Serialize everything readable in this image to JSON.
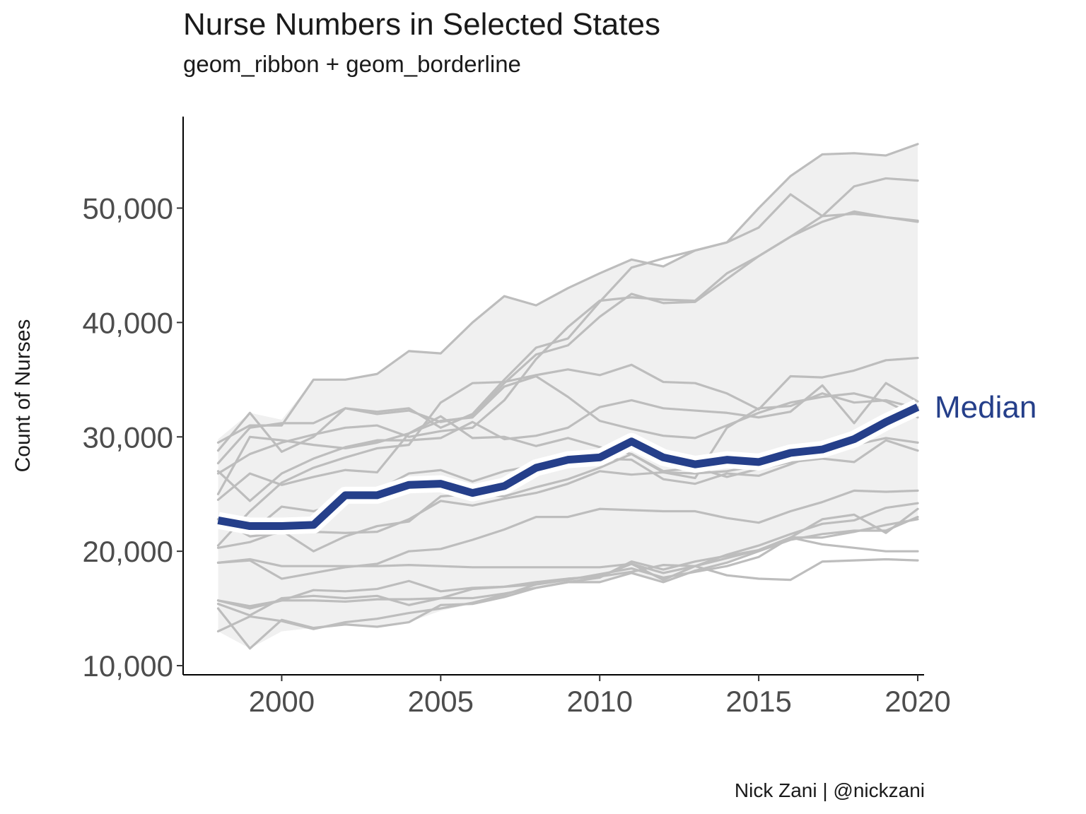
{
  "header": {
    "title": "Nurse Numbers in Selected States",
    "subtitle": "geom_ribbon + geom_borderline"
  },
  "caption": "Nick Zani | @nickzani",
  "colors": {
    "background_lines": "#bdbdbd",
    "ribbon": "#f0f0f0",
    "median": "#253f8a",
    "median_border": "#ffffff"
  },
  "chart_data": {
    "type": "line",
    "title": "Nurse Numbers in Selected States",
    "subtitle": "geom_ribbon + geom_borderline",
    "xlabel": "",
    "ylabel": "Count of Nurses",
    "xlim": [
      1996.9,
      2020.2
    ],
    "ylim": [
      9200,
      58000
    ],
    "x_ticks": [
      2000,
      2005,
      2010,
      2015,
      2020
    ],
    "y_ticks": [
      10000,
      20000,
      30000,
      40000,
      50000
    ],
    "y_tick_labels": [
      "10,000",
      "20,000",
      "30,000",
      "40,000",
      "50,000"
    ],
    "grid": false,
    "x": [
      1998,
      1999,
      2000,
      2001,
      2002,
      2003,
      2004,
      2005,
      2006,
      2007,
      2008,
      2009,
      2010,
      2011,
      2012,
      2013,
      2014,
      2015,
      2016,
      2017,
      2018,
      2019,
      2020
    ],
    "ribbon": {
      "lower": [
        13000,
        11500,
        13000,
        13300,
        13600,
        13400,
        13800,
        14800,
        15400,
        16000,
        16800,
        17300,
        17300,
        18100,
        17300,
        18300,
        19000,
        20000,
        21000,
        21500,
        21800,
        21800,
        23000
      ],
      "upper": [
        29800,
        32100,
        31500,
        35000,
        35000,
        35500,
        37500,
        37300,
        40000,
        42300,
        41500,
        43000,
        44300,
        45500,
        44900,
        46300,
        47000,
        50000,
        52800,
        54700,
        54800,
        54600,
        55600
      ]
    },
    "series": [
      {
        "values": [
          29500,
          31000,
          31000,
          35000,
          35000,
          35500,
          37500,
          37300,
          40000,
          42300,
          41500,
          43000,
          44300,
          45500,
          44900,
          46300,
          47000,
          50000,
          52800,
          54700,
          54800,
          54600,
          55600
        ]
      },
      {
        "values": [
          28800,
          32100,
          28700,
          30000,
          32500,
          32200,
          32500,
          30800,
          32000,
          35000,
          37800,
          38600,
          41800,
          44800,
          45600,
          46300,
          47000,
          48300,
          51200,
          49300,
          51900,
          52600,
          52400
        ]
      },
      {
        "values": [
          27700,
          30800,
          31200,
          31200,
          32500,
          32000,
          32300,
          31300,
          31800,
          34700,
          37200,
          38000,
          40500,
          42500,
          41700,
          41800,
          43800,
          45800,
          47500,
          49300,
          49500,
          49200,
          48900
        ]
      },
      {
        "values": [
          26800,
          28500,
          29500,
          30200,
          30800,
          31000,
          30000,
          30500,
          30800,
          33200,
          36800,
          39600,
          41900,
          42200,
          42000,
          41900,
          44300,
          45800,
          47500,
          48800,
          49700,
          49200,
          48800
        ]
      },
      {
        "values": [
          20500,
          23500,
          26000,
          27300,
          28200,
          29000,
          29300,
          33000,
          34700,
          34800,
          35400,
          35900,
          35400,
          36300,
          34800,
          34700,
          33800,
          32400,
          35300,
          35200,
          35800,
          36700,
          36900
        ]
      },
      {
        "values": [
          27000,
          24400,
          26800,
          28100,
          29100,
          29700,
          29700,
          29900,
          31300,
          29800,
          30100,
          30800,
          32600,
          33200,
          32500,
          32300,
          32100,
          31700,
          32200,
          34500,
          31200,
          34700,
          33100
        ]
      },
      {
        "values": [
          25000,
          30000,
          29700,
          29300,
          29000,
          29500,
          30300,
          31400,
          31700,
          34400,
          35300,
          33500,
          31400,
          30700,
          30100,
          29900,
          31000,
          32100,
          33000,
          33500,
          33800,
          33100,
          31700
        ]
      },
      {
        "values": [
          24500,
          26800,
          25800,
          26500,
          27100,
          26900,
          30300,
          31800,
          29900,
          30000,
          29200,
          29900,
          29100,
          28500,
          26900,
          26400,
          30800,
          32500,
          32700,
          33800,
          33000,
          33200,
          32500
        ]
      },
      {
        "values": [
          22800,
          21600,
          23900,
          23500,
          24300,
          25300,
          26800,
          27100,
          26100,
          27000,
          27500,
          27400,
          28100,
          28000,
          26300,
          25900,
          26800,
          26600,
          27600,
          28700,
          29300,
          29900,
          29500
        ]
      },
      {
        "values": [
          20300,
          20800,
          21800,
          20000,
          21300,
          22200,
          22600,
          24800,
          25000,
          24800,
          25600,
          26300,
          27300,
          28500,
          27000,
          27300,
          26500,
          27200,
          27800,
          28100,
          27800,
          29700,
          28800
        ]
      },
      {
        "values": [
          22800,
          22200,
          22200,
          22300,
          24900,
          24900,
          25800,
          25900,
          25100,
          25600,
          27300,
          28000,
          28100,
          29600,
          28100,
          27600,
          28000,
          27800,
          28500,
          28800,
          29700,
          31300,
          32600
        ]
      },
      {
        "values": [
          22800,
          21300,
          21600,
          21700,
          21600,
          21700,
          22800,
          24400,
          24000,
          24600,
          25100,
          25900,
          27000,
          26700,
          26900,
          26800,
          27000,
          27500,
          28100,
          28900,
          29900,
          31300,
          32600
        ]
      },
      {
        "values": [
          19000,
          19200,
          17600,
          18100,
          18600,
          18900,
          20000,
          20200,
          21000,
          21900,
          23000,
          23000,
          23700,
          23600,
          23500,
          23500,
          22900,
          22500,
          23500,
          24300,
          25300,
          25200,
          25300
        ]
      },
      {
        "values": [
          15700,
          15200,
          15700,
          16600,
          16500,
          16700,
          17400,
          16500,
          16800,
          16900,
          17100,
          17600,
          17800,
          18200,
          18800,
          18700,
          19700,
          20500,
          21500,
          22400,
          22700,
          23800,
          24200
        ]
      },
      {
        "values": [
          15400,
          14400,
          15900,
          16100,
          15900,
          16100,
          15300,
          15900,
          16700,
          16900,
          17300,
          17600,
          17800,
          18900,
          17500,
          18700,
          19400,
          20100,
          21200,
          22800,
          23200,
          21600,
          23700
        ]
      },
      {
        "values": [
          13000,
          14300,
          13900,
          13200,
          13800,
          14100,
          14600,
          15000,
          15500,
          16200,
          17100,
          17500,
          18000,
          18500,
          17700,
          18200,
          18700,
          19500,
          21200,
          21200,
          21700,
          22300,
          22800
        ]
      },
      {
        "values": [
          15000,
          11500,
          14000,
          13300,
          13600,
          13400,
          13800,
          15300,
          15400,
          16000,
          16800,
          17300,
          17300,
          18100,
          17300,
          18300,
          19000,
          20000,
          21000,
          21500,
          21800,
          21800,
          23000
        ]
      },
      {
        "values": [
          19000,
          19300,
          18700,
          18700,
          18700,
          18700,
          18800,
          18700,
          18600,
          18600,
          18600,
          18600,
          18600,
          18900,
          18100,
          18700,
          17900,
          17600,
          17500,
          19100,
          19200,
          19300,
          19200
        ]
      },
      {
        "values": [
          15700,
          15000,
          15700,
          15700,
          15600,
          15800,
          15800,
          15900,
          15900,
          16300,
          16800,
          17300,
          17700,
          19100,
          18400,
          19100,
          19600,
          20100,
          21200,
          20600,
          20300,
          20000,
          20000
        ]
      }
    ],
    "median": {
      "name": "Median",
      "values": [
        22700,
        22200,
        22200,
        22300,
        24900,
        24900,
        25800,
        25900,
        25100,
        25700,
        27300,
        28000,
        28200,
        29600,
        28200,
        27600,
        28000,
        27800,
        28600,
        28900,
        29800,
        31300,
        32600
      ]
    }
  }
}
